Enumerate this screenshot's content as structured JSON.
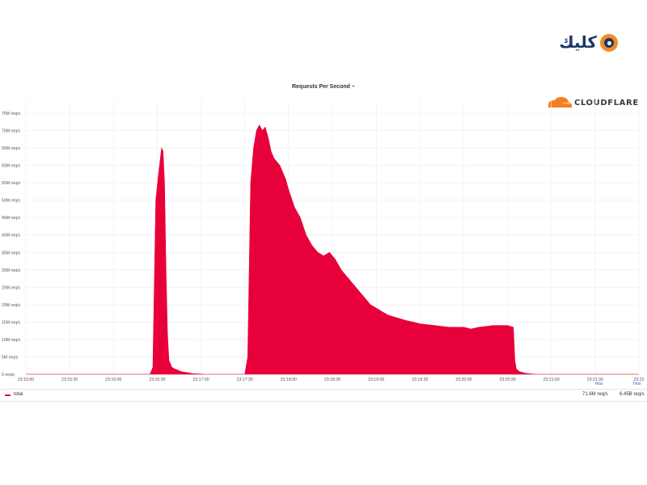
{
  "brand": {
    "logo_text": "كليك"
  },
  "cloudflare": {
    "logo_text": "CLOUDFLARE"
  },
  "colors": {
    "series": "#e8003a",
    "grid": "#ececec",
    "axis_text": "#555555",
    "legend_link": "#3a6fd8"
  },
  "legend": {
    "series_name": "total",
    "max_label": "Max",
    "total_label": "Total",
    "max_value": "71.6M req/s",
    "total_value": "6.45B req/s"
  },
  "chart_data": {
    "type": "area",
    "title": "Requests Per Second ~",
    "xlabel": "",
    "ylabel": "",
    "ylim": [
      0,
      75
    ],
    "y_unit": "M req/s",
    "y_tick_labels": [
      "0 req/s",
      "5M req/s",
      "10M req/s",
      "15M req/s",
      "20M req/s",
      "25M req/s",
      "30M req/s",
      "35M req/s",
      "40M req/s",
      "45M req/s",
      "50M req/s",
      "55M req/s",
      "60M req/s",
      "65M req/s",
      "70M req/s",
      "75M req/s"
    ],
    "x_tick_labels": [
      "23:15:00",
      "23:15:30",
      "23:16:00",
      "23:16:30",
      "23:17:00",
      "23:17:30",
      "23:18:00",
      "23:18:30",
      "23:19:00",
      "23:19:30",
      "23:20:00",
      "23:20:30",
      "23:21:00",
      "23:21:30",
      "23:22"
    ],
    "x_tick_seconds": [
      0,
      30,
      60,
      90,
      120,
      150,
      180,
      210,
      240,
      270,
      300,
      330,
      360,
      390,
      420
    ],
    "grid": true,
    "legend_position": "bottom",
    "series": [
      {
        "name": "total",
        "x_seconds": [
          0,
          30,
          60,
          85,
          87,
          89,
          91,
          93,
          94,
          95,
          96,
          97,
          98,
          100,
          102,
          104,
          106,
          110,
          114,
          118,
          122,
          130,
          140,
          150,
          152,
          154,
          155,
          156,
          158,
          160,
          162,
          164,
          166,
          168,
          170,
          172,
          174,
          176,
          178,
          180,
          184,
          188,
          192,
          196,
          200,
          204,
          208,
          212,
          216,
          220,
          222,
          224,
          226,
          228,
          230,
          232,
          236,
          240,
          244,
          248,
          252,
          256,
          260,
          270,
          280,
          290,
          300,
          305,
          310,
          320,
          330,
          334,
          335,
          336,
          338,
          342,
          346,
          350,
          360,
          380,
          400,
          420
        ],
        "values": [
          0,
          0,
          0,
          0,
          2,
          50,
          58,
          65,
          64,
          55,
          30,
          12,
          4,
          2,
          1.5,
          1.2,
          0.8,
          0.5,
          0.2,
          0.1,
          0,
          0,
          0,
          0,
          5,
          55,
          60,
          65,
          70,
          71.6,
          70,
          71,
          68,
          64,
          62,
          61,
          60,
          58,
          56,
          53,
          48,
          45,
          40,
          37,
          35,
          34,
          35,
          33,
          30,
          28,
          27,
          26,
          25,
          24,
          23,
          22,
          20,
          19,
          18,
          17,
          16.5,
          16,
          15.5,
          14.5,
          14,
          13.5,
          13.5,
          13,
          13.5,
          14,
          14,
          13.5,
          4,
          1.5,
          0.8,
          0.3,
          0.1,
          0,
          0,
          0,
          0,
          0
        ]
      }
    ]
  }
}
